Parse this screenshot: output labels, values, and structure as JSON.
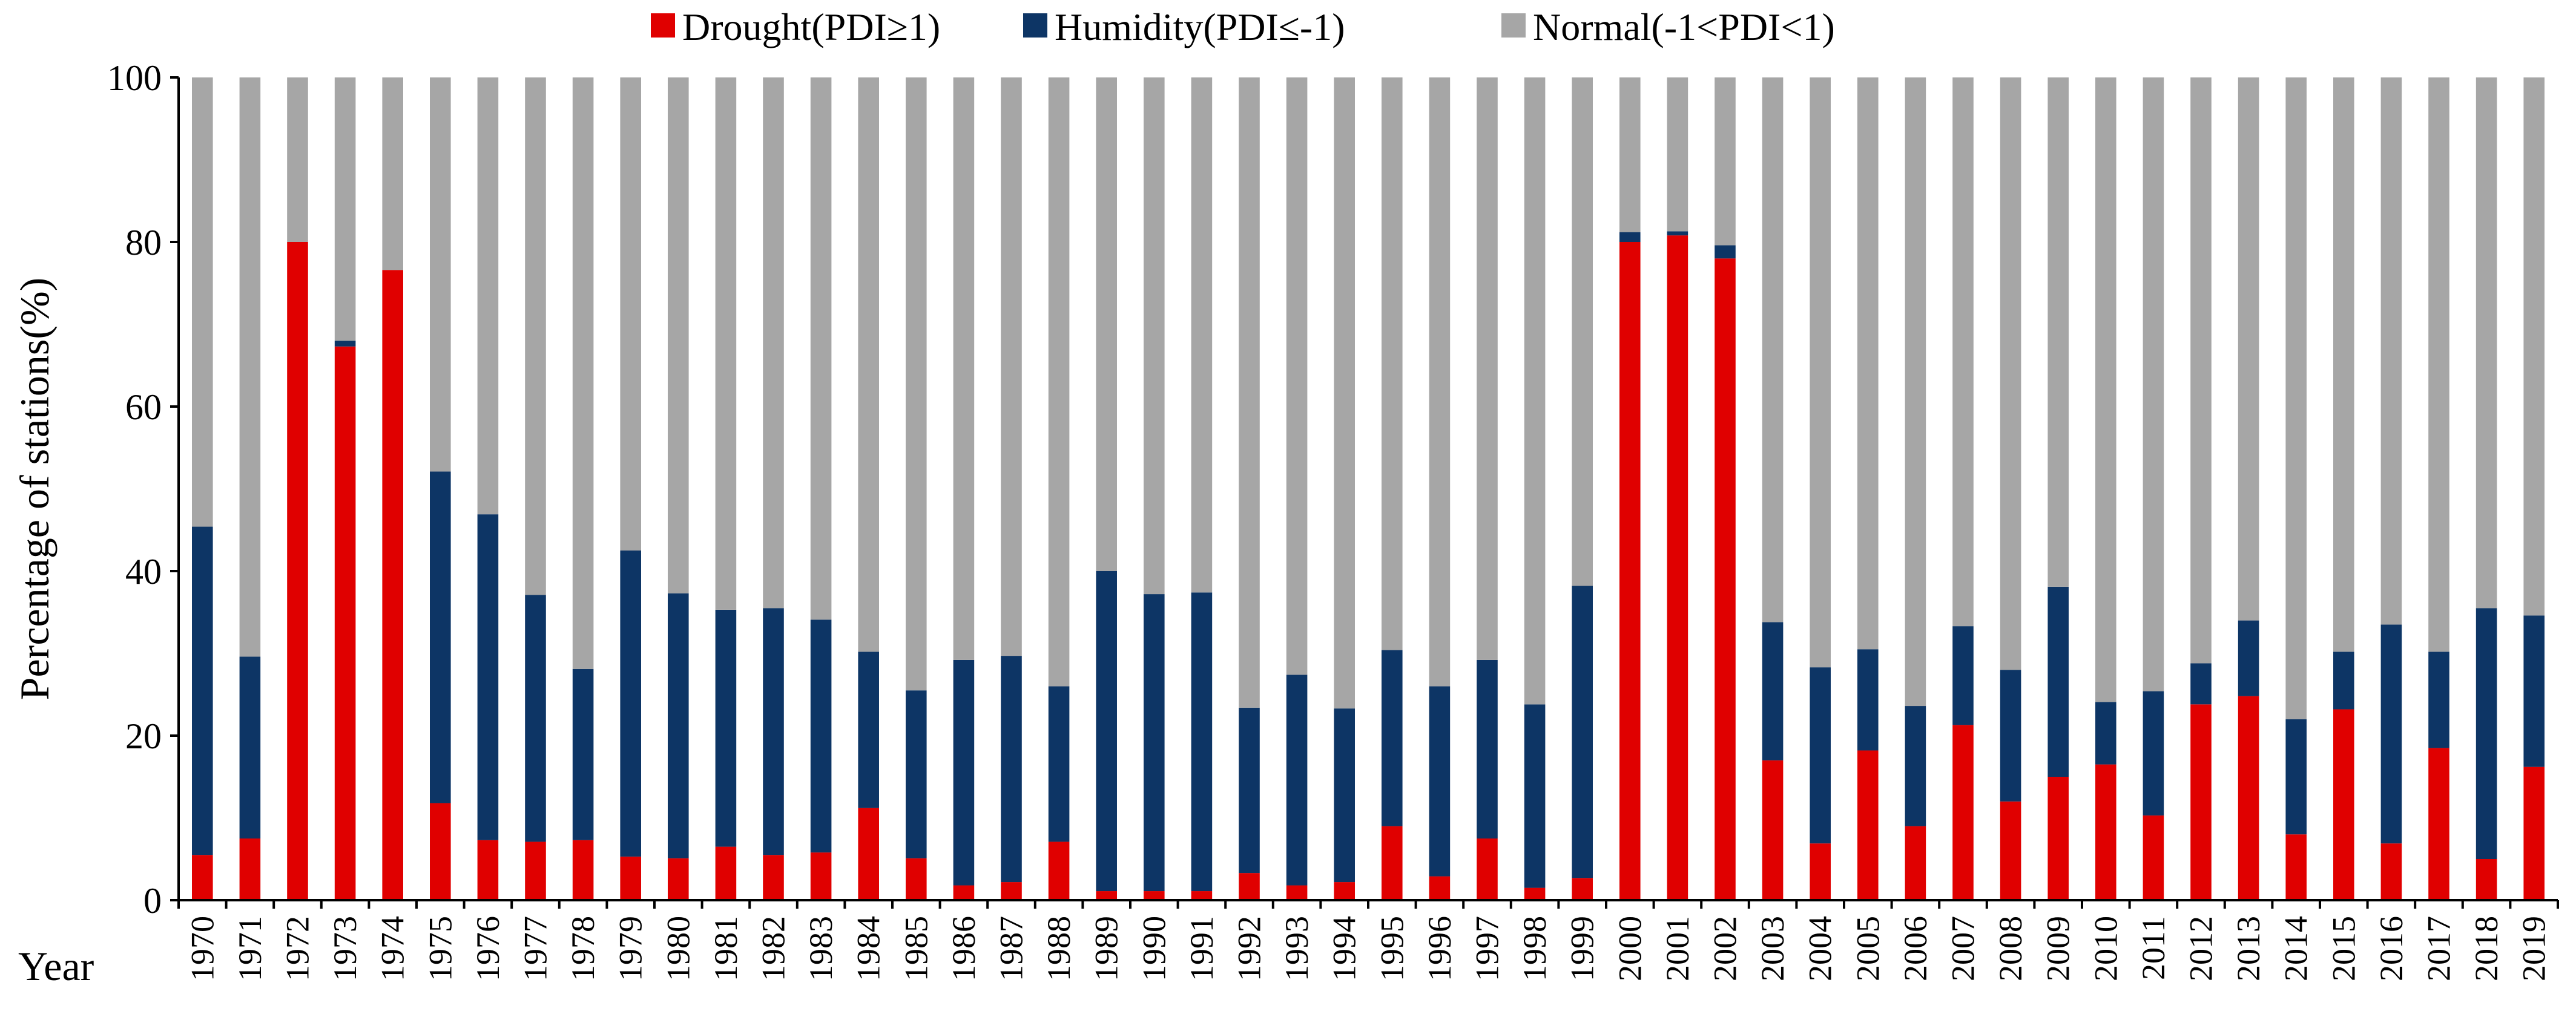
{
  "chart_data": {
    "type": "bar",
    "stacked": true,
    "ylabel": "Percentage of stations(%)",
    "xlabel": "Year",
    "ylim": [
      0,
      100
    ],
    "yticks": [
      0,
      20,
      40,
      60,
      80,
      100
    ],
    "grid": false,
    "legend_position": "top",
    "categories": [
      "1970",
      "1971",
      "1972",
      "1973",
      "1974",
      "1975",
      "1976",
      "1977",
      "1978",
      "1979",
      "1980",
      "1981",
      "1982",
      "1983",
      "1984",
      "1985",
      "1986",
      "1987",
      "1988",
      "1989",
      "1990",
      "1991",
      "1992",
      "1993",
      "1994",
      "1995",
      "1996",
      "1997",
      "1998",
      "1999",
      "2000",
      "2001",
      "2002",
      "2003",
      "2004",
      "2005",
      "2006",
      "2007",
      "2008",
      "2009",
      "2010",
      "2011",
      "2012",
      "2013",
      "2014",
      "2015",
      "2016",
      "2017",
      "2018",
      "2019"
    ],
    "series": [
      {
        "name": "Drought(PDI≥1)",
        "color": "#e00000",
        "values": [
          5.5,
          7.5,
          80.0,
          67.3,
          76.6,
          11.8,
          7.3,
          7.1,
          7.3,
          5.3,
          5.1,
          6.5,
          5.5,
          5.8,
          11.2,
          5.1,
          1.8,
          2.2,
          7.1,
          1.1,
          1.1,
          1.1,
          3.3,
          1.8,
          2.2,
          9.0,
          2.9,
          7.5,
          1.5,
          2.7,
          80.0,
          80.8,
          78.0,
          17.0,
          6.9,
          18.2,
          9.0,
          21.3,
          12.0,
          15.0,
          16.5,
          10.3,
          23.8,
          24.8,
          8.0,
          23.2,
          6.9,
          18.5,
          5.0,
          16.2
        ]
      },
      {
        "name": "Humidity(PDI≤-1)",
        "color": "#0d3565",
        "values": [
          39.9,
          22.1,
          0.0,
          0.7,
          0.0,
          40.3,
          39.6,
          30.0,
          20.8,
          37.2,
          32.2,
          28.8,
          30.0,
          28.3,
          19.0,
          20.4,
          27.4,
          27.5,
          18.9,
          38.9,
          36.1,
          36.3,
          20.1,
          25.6,
          21.1,
          21.4,
          23.1,
          21.7,
          22.3,
          35.5,
          1.2,
          0.5,
          1.6,
          16.8,
          21.4,
          12.3,
          14.6,
          12.0,
          16.0,
          23.1,
          7.6,
          15.1,
          5.0,
          9.2,
          14.0,
          7.0,
          26.6,
          11.7,
          30.5,
          18.4
        ]
      },
      {
        "name": "Normal(-1<PDI<1)",
        "color": "#a6a6a6",
        "values": [
          54.6,
          70.4,
          20.0,
          32.0,
          23.4,
          47.9,
          53.1,
          62.9,
          71.9,
          57.5,
          62.7,
          64.7,
          64.5,
          65.9,
          69.8,
          74.5,
          70.8,
          70.3,
          74.0,
          60.0,
          62.8,
          62.6,
          76.6,
          72.6,
          76.7,
          69.6,
          74.0,
          70.8,
          76.2,
          61.8,
          18.8,
          18.7,
          20.4,
          66.2,
          71.7,
          69.5,
          76.4,
          66.7,
          72.0,
          61.9,
          75.9,
          74.6,
          71.2,
          66.0,
          78.0,
          69.8,
          66.5,
          69.8,
          64.5,
          65.4
        ]
      }
    ]
  }
}
